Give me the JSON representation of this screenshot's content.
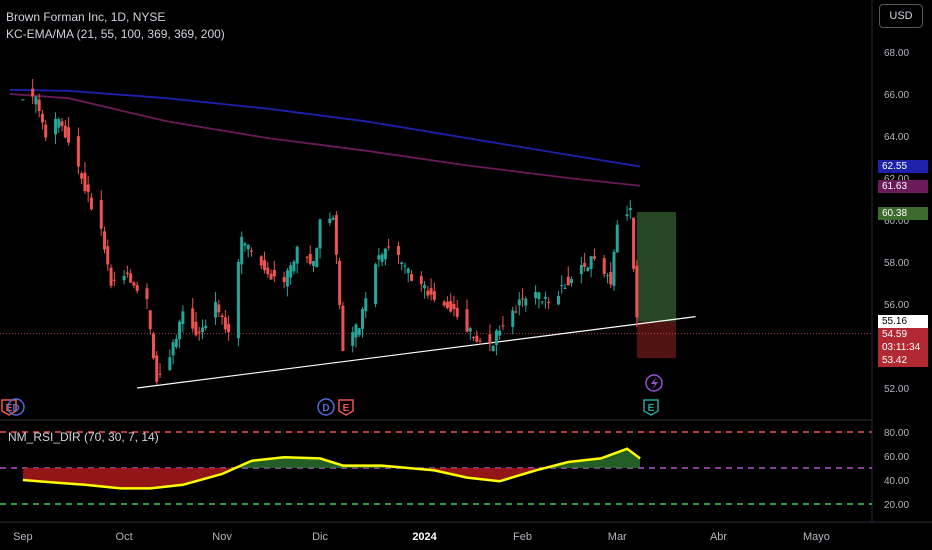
{
  "header": {
    "title": "Brown Forman Inc, 1D, NYSE",
    "indicator": "KC-EMA/MA (21, 55, 100, 369, 369, 200)",
    "currency_button": "USD"
  },
  "rsi_panel": {
    "title": "NM_RSI_DIR (70, 30, 7, 14)",
    "ticks": [
      "80.00",
      "60.00",
      "40.00",
      "20.00"
    ]
  },
  "price_axis": {
    "ticks": [
      "68.00",
      "66.00",
      "64.00",
      "62.00",
      "60.00",
      "58.00",
      "56.00",
      "54.00",
      "52.00"
    ]
  },
  "price_tags": [
    {
      "label": "62.55",
      "color": "#1e22aa"
    },
    {
      "label": "61.63",
      "color": "#6b1a5a"
    },
    {
      "label": "60.38",
      "color": "#3d6b2e"
    },
    {
      "label": "55.16",
      "color": "#ffffff"
    },
    {
      "label": "54.59",
      "color": "#b22833"
    },
    {
      "label": "03:11:34",
      "color": "#b22833"
    },
    {
      "label": "53.42",
      "color": "#b22833"
    }
  ],
  "x_axis": {
    "labels": [
      "Sep",
      "Oct",
      "Nov",
      "Dic",
      "2024",
      "Feb",
      "Mar",
      "Abr",
      "Mayo"
    ]
  },
  "event_markers": {
    "earnings": "E",
    "dividend": "D"
  },
  "colors": {
    "up": "#26a69a",
    "down": "#ef5350",
    "ma_blue": "#1e22aa",
    "ma_purple": "#6b1a5a",
    "rsi_line": "#ffff00",
    "trendline": "#ffffff",
    "target_zone": "#2e5229",
    "stop_zone": "#5a1414"
  },
  "chart_data": [
    {
      "type": "candlestick",
      "title": "Brown Forman Inc, 1D, NYSE",
      "x_range": [
        "2023-09-01",
        "2024-05-31"
      ],
      "ylim": [
        51.5,
        69.5
      ],
      "series": [
        {
          "name": "Price (approx. close path)",
          "points": [
            [
              "2023-09-01",
              66.0
            ],
            [
              "2023-09-05",
              65.7
            ],
            [
              "2023-09-08",
              64.0
            ],
            [
              "2023-09-12",
              64.8
            ],
            [
              "2023-09-15",
              63.8
            ],
            [
              "2023-09-20",
              61.5
            ],
            [
              "2023-09-25",
              59.5
            ],
            [
              "2023-09-28",
              57.0
            ],
            [
              "2023-10-03",
              57.5
            ],
            [
              "2023-10-09",
              56.0
            ],
            [
              "2023-10-12",
              52.4
            ],
            [
              "2023-10-17",
              54.0
            ],
            [
              "2023-10-20",
              55.5
            ],
            [
              "2023-10-25",
              54.5
            ],
            [
              "2023-10-30",
              56.0
            ],
            [
              "2023-11-03",
              54.5
            ],
            [
              "2023-11-07",
              59.0
            ],
            [
              "2023-11-10",
              58.5
            ],
            [
              "2023-11-15",
              57.5
            ],
            [
              "2023-11-20",
              57.0
            ],
            [
              "2023-11-24",
              58.5
            ],
            [
              "2023-11-29",
              58.0
            ],
            [
              "2023-12-01",
              59.8
            ],
            [
              "2023-12-05",
              60.3
            ],
            [
              "2023-12-07",
              56.0
            ],
            [
              "2023-12-08",
              54.0
            ],
            [
              "2023-12-13",
              55.0
            ],
            [
              "2023-12-18",
              58.0
            ],
            [
              "2023-12-22",
              58.8
            ],
            [
              "2023-12-28",
              57.5
            ],
            [
              "2024-01-03",
              56.5
            ],
            [
              "2024-01-09",
              56.0
            ],
            [
              "2024-01-12",
              55.5
            ],
            [
              "2024-01-17",
              54.5
            ],
            [
              "2024-01-22",
              54.0
            ],
            [
              "2024-01-26",
              55.0
            ],
            [
              "2024-01-31",
              56.0
            ],
            [
              "2024-02-05",
              56.5
            ],
            [
              "2024-02-09",
              56.0
            ],
            [
              "2024-02-14",
              57.0
            ],
            [
              "2024-02-20",
              57.8
            ],
            [
              "2024-02-23",
              58.3
            ],
            [
              "2024-02-28",
              57.0
            ],
            [
              "2024-03-01",
              60.0
            ],
            [
              "2024-03-05",
              60.4
            ],
            [
              "2024-03-07",
              55.16
            ]
          ]
        },
        {
          "name": "MA (blue)",
          "points": [
            [
              "2023-08-28",
              66.2
            ],
            [
              "2023-09-15",
              66.15
            ],
            [
              "2023-10-15",
              65.8
            ],
            [
              "2023-11-15",
              65.3
            ],
            [
              "2023-12-15",
              64.7
            ],
            [
              "2024-01-15",
              63.9
            ],
            [
              "2024-02-15",
              63.1
            ],
            [
              "2024-03-08",
              62.55
            ]
          ]
        },
        {
          "name": "MA (purple)",
          "points": [
            [
              "2023-08-28",
              66.0
            ],
            [
              "2023-09-15",
              65.8
            ],
            [
              "2023-10-15",
              64.7
            ],
            [
              "2023-11-15",
              63.9
            ],
            [
              "2023-12-15",
              63.3
            ],
            [
              "2024-01-15",
              62.6
            ],
            [
              "2024-02-15",
              62.0
            ],
            [
              "2024-03-08",
              61.63
            ]
          ]
        },
        {
          "name": "Trendline",
          "points": [
            [
              "2023-10-06",
              52.0
            ],
            [
              "2024-03-25",
              55.4
            ]
          ]
        }
      ],
      "position": {
        "entry": 55.16,
        "target": 60.38,
        "stop": 53.42,
        "current": 54.59
      }
    },
    {
      "type": "line",
      "title": "NM_RSI_DIR (70, 30, 7, 14)",
      "ylim": [
        10,
        85
      ],
      "levels": [
        80,
        50,
        20
      ],
      "series": [
        {
          "name": "RSI",
          "points": [
            [
              "2023-09-01",
              40
            ],
            [
              "2023-09-10",
              38
            ],
            [
              "2023-09-20",
              36
            ],
            [
              "2023-10-01",
              33
            ],
            [
              "2023-10-10",
              33
            ],
            [
              "2023-10-20",
              36
            ],
            [
              "2023-11-01",
              45
            ],
            [
              "2023-11-10",
              56
            ],
            [
              "2023-11-20",
              59
            ],
            [
              "2023-12-01",
              58
            ],
            [
              "2023-12-08",
              52
            ],
            [
              "2023-12-20",
              52
            ],
            [
              "2024-01-05",
              48
            ],
            [
              "2024-01-15",
              42
            ],
            [
              "2024-01-25",
              39
            ],
            [
              "2024-02-05",
              48
            ],
            [
              "2024-02-15",
              55
            ],
            [
              "2024-02-25",
              58
            ],
            [
              "2024-03-04",
              66
            ],
            [
              "2024-03-08",
              58
            ]
          ]
        }
      ]
    }
  ]
}
